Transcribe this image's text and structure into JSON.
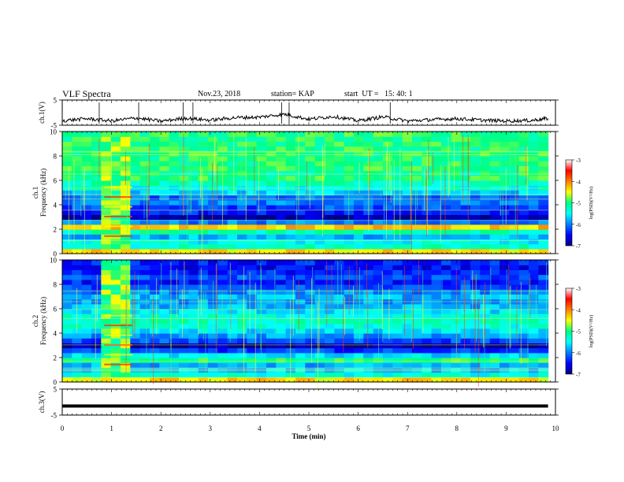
{
  "header": {
    "title": "VLF Spectra",
    "date": "Nov.23, 2018",
    "station": "station= KAP",
    "start": "start  UT =   15: 40: 1"
  },
  "chart_data": [
    {
      "type": "line",
      "panel": "ch1-waveform",
      "ylabel": "ch.1(V)",
      "yticks": [
        "5",
        "-5"
      ],
      "ylim": [
        -5,
        5
      ],
      "xlim": [
        0,
        10
      ],
      "note_series": "noisy signal, mean approx -2 V",
      "x": [
        0,
        0.5,
        1,
        1.5,
        2,
        2.5,
        3,
        3.5,
        4,
        4.5,
        5,
        5.5,
        6,
        6.5,
        7,
        7.5,
        8,
        8.5,
        9,
        9.5,
        9.85
      ],
      "y": [
        -3.2,
        -2.4,
        -3.3,
        -2.1,
        -3.4,
        -2.2,
        -3.0,
        -2.0,
        -1.8,
        -0.6,
        -2.6,
        -1.5,
        -3.2,
        -1.7,
        -3.3,
        -2.8,
        -2.4,
        -3.0,
        -3.3,
        -3.1,
        -2.3
      ]
    },
    {
      "type": "heatmap",
      "panel": "ch1-spectrogram",
      "ylabel": "ch.1\nFrequency  (kHz)",
      "yticks": [
        "0",
        "2",
        "4",
        "6",
        "8",
        "10"
      ],
      "ylim": [
        0,
        10
      ],
      "xlim": [
        0,
        9.85
      ],
      "colorbar": {
        "label": "log(PSD)(V²/Hz)",
        "ticks": [
          "-3",
          "-4",
          "-5",
          "-6",
          "-7"
        ],
        "range": [
          -7,
          -3
        ]
      },
      "levels": {
        "frequency_kHz": [
          0.2,
          0.6,
          1.0,
          1.4,
          1.8,
          2.2,
          2.6,
          3.0,
          3.4,
          3.8,
          4.2,
          4.6,
          5.0,
          5.4,
          5.8,
          6.2,
          6.6,
          7.0,
          7.4,
          7.8,
          8.2,
          8.6,
          9.0,
          9.4,
          9.8
        ],
        "log_psd": [
          -4.4,
          -5.3,
          -5.5,
          -5.8,
          -5.2,
          -4.3,
          -6.0,
          -6.8,
          -6.4,
          -6.2,
          -6.0,
          -6.1,
          -5.7,
          -5.4,
          -5.2,
          -5.0,
          -5.1,
          -5.0,
          -5.0,
          -5.0,
          -5.0,
          -5.0,
          -5.0,
          -5.0,
          -5.0
        ]
      },
      "burst_interval_min": [
        0.85,
        1.42
      ]
    },
    {
      "type": "heatmap",
      "panel": "ch2-spectrogram",
      "ylabel": "ch.2\nFrequency  (kHz)",
      "yticks": [
        "0",
        "2",
        "4",
        "6",
        "8",
        "10"
      ],
      "ylim": [
        0,
        10
      ],
      "xlim": [
        0,
        9.85
      ],
      "colorbar": {
        "label": "log(PSD)(V²/Hz)",
        "ticks": [
          "-3",
          "-4",
          "-5",
          "-6",
          "-7"
        ],
        "range": [
          -7,
          -3
        ]
      },
      "levels": {
        "frequency_kHz": [
          0.2,
          0.6,
          1.0,
          1.4,
          1.8,
          2.2,
          2.6,
          3.0,
          3.4,
          3.8,
          4.2,
          4.6,
          5.0,
          5.4,
          5.8,
          6.2,
          6.6,
          7.0,
          7.4,
          7.8,
          8.2,
          8.6,
          9.0,
          9.4,
          9.8
        ],
        "log_psd": [
          -4.4,
          -5.4,
          -5.7,
          -5.8,
          -5.0,
          -5.6,
          -6.3,
          -6.9,
          -6.2,
          -5.9,
          -5.6,
          -5.4,
          -5.3,
          -5.4,
          -5.6,
          -5.8,
          -5.9,
          -5.8,
          -6.0,
          -6.2,
          -6.4,
          -6.2,
          -6.4,
          -6.5,
          -6.4
        ]
      },
      "burst_interval_min": [
        0.85,
        1.42
      ]
    },
    {
      "type": "line",
      "panel": "ch3-waveform",
      "ylabel": "ch.3(V)",
      "yticks": [
        "5",
        "-5"
      ],
      "ylim": [
        -5,
        5
      ],
      "xlim": [
        0,
        10
      ],
      "x": [
        0,
        9.85
      ],
      "y": [
        -1.5,
        -1.5
      ]
    }
  ],
  "xaxis": {
    "label": "Time  (min)",
    "ticks": [
      "0",
      "1",
      "2",
      "3",
      "4",
      "5",
      "6",
      "7",
      "8",
      "9",
      "10"
    ],
    "range": [
      0,
      10
    ]
  }
}
